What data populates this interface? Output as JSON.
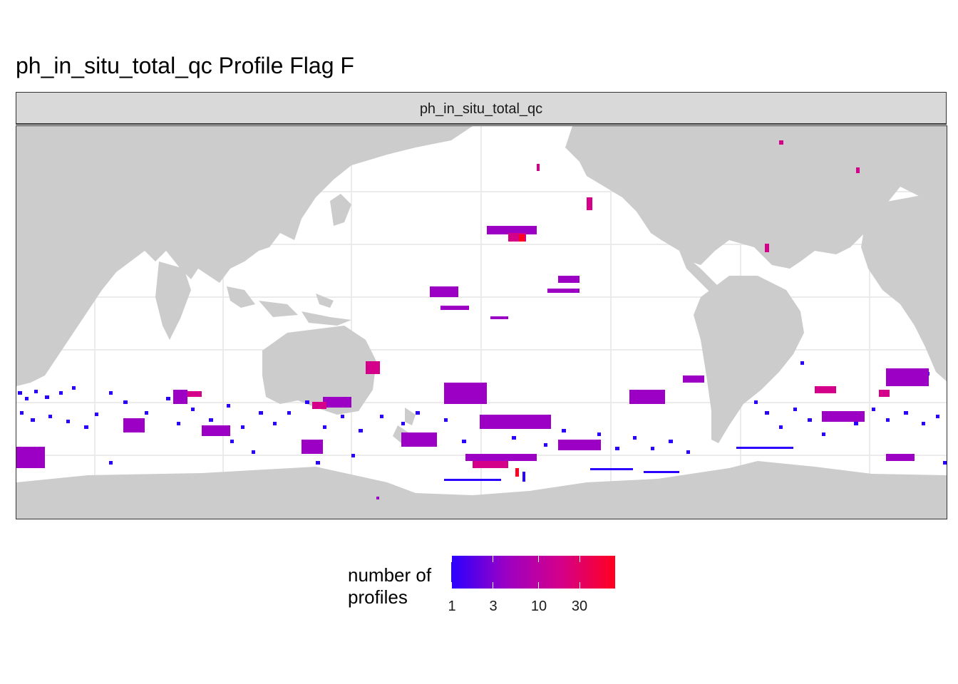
{
  "title": "ph_in_situ_total_qc Profile Flag F",
  "facet": {
    "label": "ph_in_situ_total_qc"
  },
  "legend": {
    "title_line1": "number of",
    "title_line2": "profiles",
    "tick_labels": [
      "1",
      "3",
      "10",
      "30"
    ],
    "scale": "log",
    "colors": [
      "#2a00ff",
      "#ff0020"
    ],
    "range": [
      1,
      60
    ]
  },
  "map": {
    "land_color": "#cccccc",
    "ocean_color": "#ffffff",
    "grid_color": "#ebebeb",
    "projection": "Pacific-centered equirectangular"
  }
}
